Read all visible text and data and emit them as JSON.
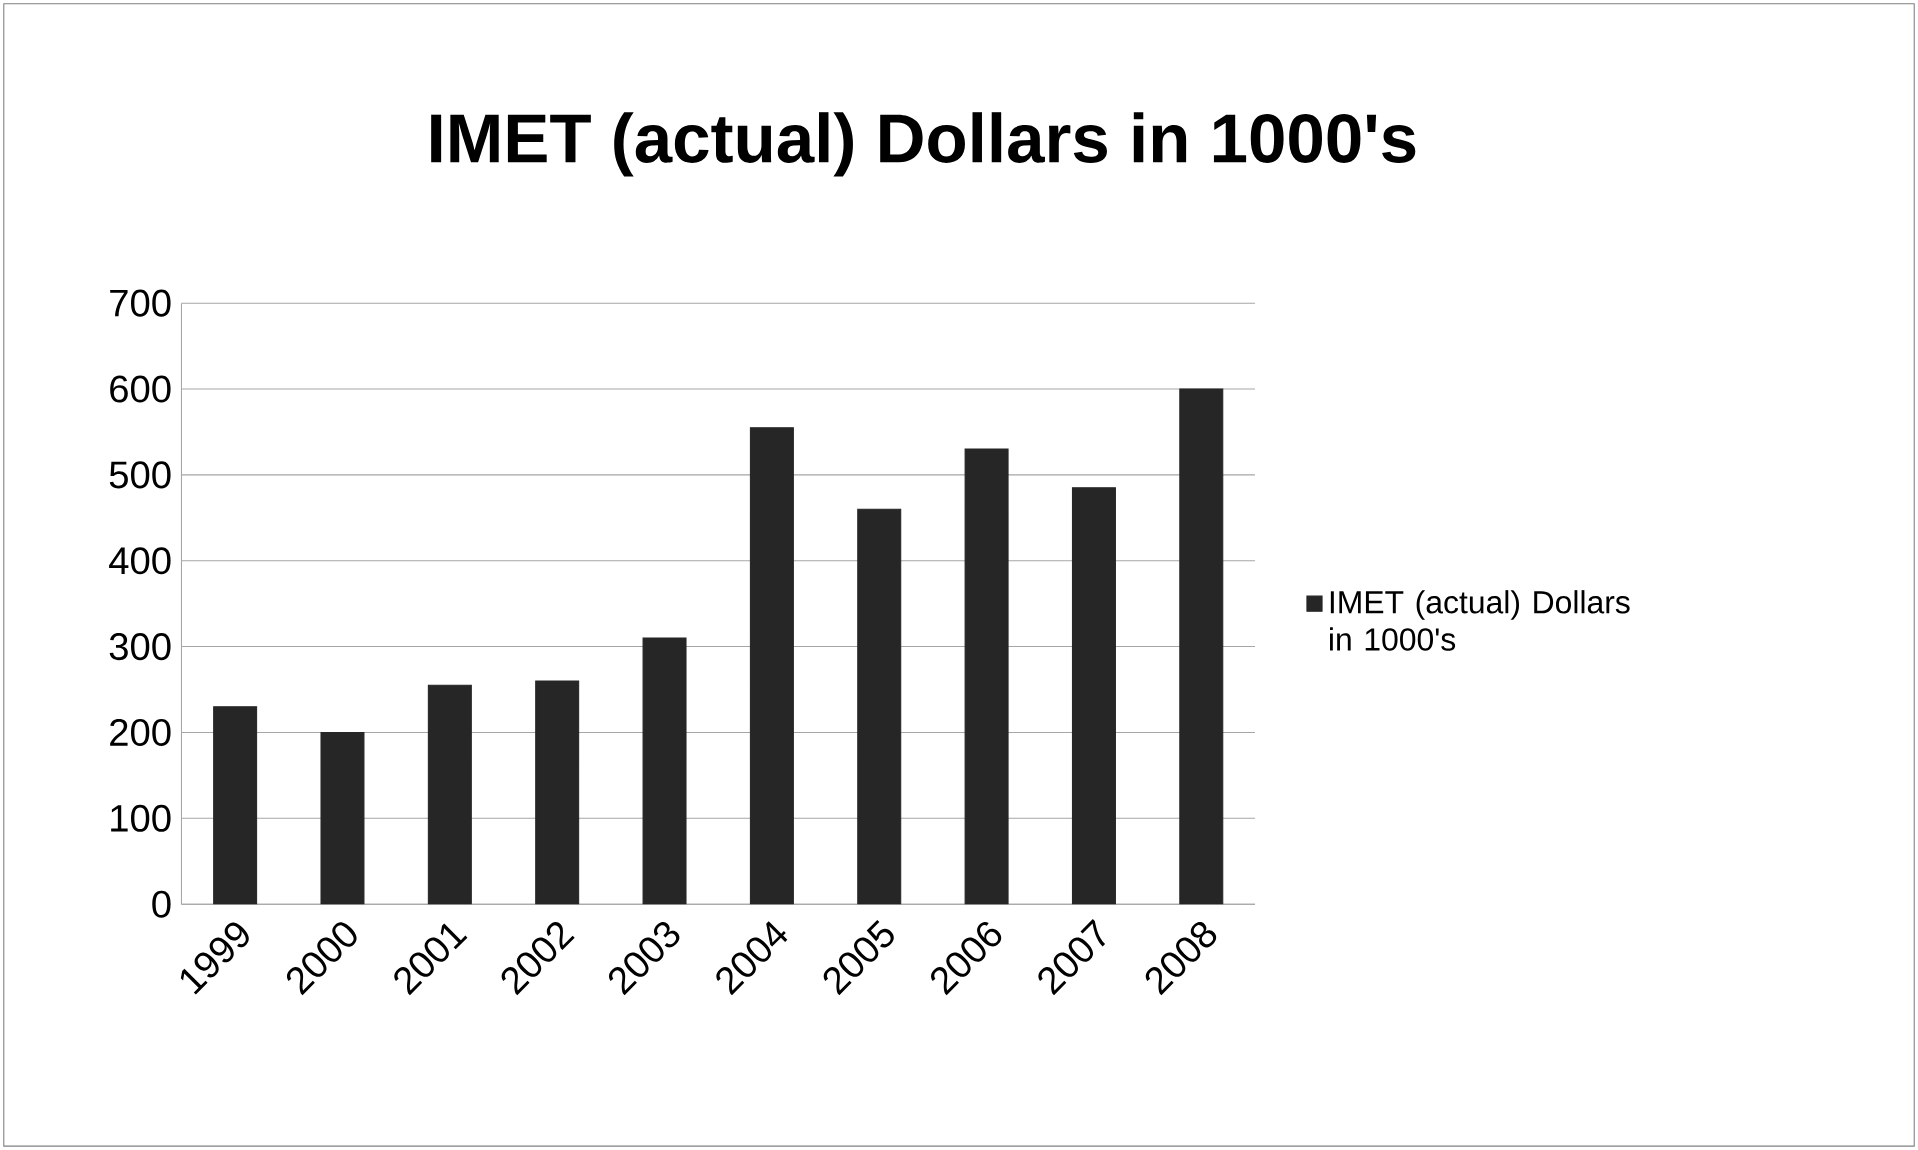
{
  "chart_data": {
    "type": "bar",
    "title": "IMET (actual) Dollars in 1000's",
    "categories": [
      "1999",
      "2000",
      "2001",
      "2002",
      "2003",
      "2004",
      "2005",
      "2006",
      "2007",
      "2008"
    ],
    "series": [
      {
        "name": "IMET (actual) Dollars in 1000's",
        "color": "#262626",
        "values": [
          230,
          200,
          255,
          260,
          310,
          555,
          460,
          530,
          485,
          600
        ]
      }
    ],
    "ylim": [
      0,
      700
    ],
    "yticks": [
      0,
      100,
      200,
      300,
      400,
      500,
      600,
      700
    ],
    "grid": "y",
    "legend": "right"
  }
}
